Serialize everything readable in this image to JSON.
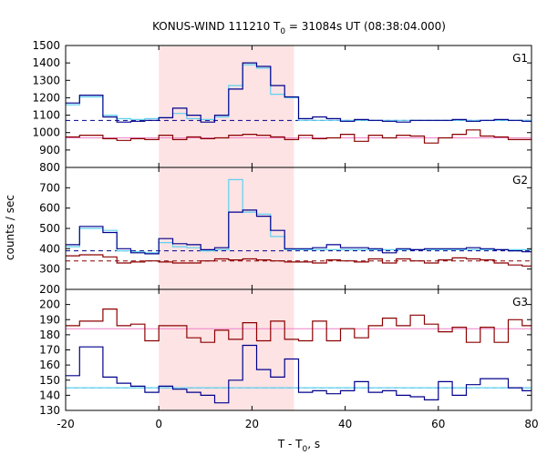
{
  "chart_data": {
    "type": "line",
    "title_prefix": "KONUS-WIND 111210 T",
    "title_sub": "0",
    "title_suffix": " = 31084s UT (08:38:04.000)",
    "xlabel_prefix": "T - T",
    "xlabel_sub": "0",
    "xlabel_suffix": ", s",
    "ylabel": "counts / sec",
    "xlim": [
      -20,
      80
    ],
    "xticks": [
      -20,
      0,
      20,
      40,
      60,
      80
    ],
    "highlight_interval": [
      0,
      29
    ],
    "colors": {
      "blue": "#00008b",
      "cyan": "#5fd0ee",
      "red": "#8b0000",
      "pink": "#ee82c8",
      "highlight": "#fde3e4"
    },
    "x_edges": [
      -20,
      -17,
      -12,
      -9,
      -6,
      -3,
      0,
      3,
      6,
      9,
      12,
      15,
      18,
      21,
      24,
      27,
      30,
      33,
      36,
      39,
      42,
      45,
      48,
      51,
      54,
      57,
      60,
      63,
      66,
      69,
      72,
      75,
      78,
      80
    ],
    "panels": [
      {
        "label": "G1",
        "ylim": [
          800,
          1500
        ],
        "yticks": [
          800,
          900,
          1000,
          1100,
          1200,
          1300,
          1400,
          1500
        ],
        "blue_values": [
          1170,
          1215,
          1090,
          1060,
          1065,
          1070,
          1085,
          1140,
          1100,
          1060,
          1100,
          1250,
          1400,
          1380,
          1270,
          1205,
          1080,
          1090,
          1080,
          1065,
          1075,
          1070,
          1065,
          1060,
          1070,
          1070,
          1070,
          1075,
          1065,
          1070,
          1075,
          1070,
          1065
        ],
        "cyan_values": [
          1160,
          1205,
          1100,
          1080,
          1075,
          1080,
          1085,
          1110,
          1080,
          1075,
          1090,
          1270,
          1390,
          1370,
          1220,
          1200,
          1070,
          1070,
          1070,
          1070,
          1070,
          1070,
          1070,
          1070,
          1070,
          1070,
          1070,
          1070,
          1070,
          1070,
          1070,
          1070,
          1070
        ],
        "red_values": [
          975,
          985,
          965,
          955,
          965,
          960,
          985,
          960,
          975,
          965,
          970,
          985,
          990,
          985,
          975,
          960,
          985,
          965,
          970,
          990,
          950,
          985,
          970,
          985,
          980,
          940,
          970,
          990,
          1015,
          980,
          975,
          960,
          960
        ],
        "blue_bg": 1070,
        "red_bg": 970,
        "red_bg_dashed": false
      },
      {
        "label": "G2",
        "ylim": [
          200,
          800
        ],
        "yticks": [
          200,
          300,
          400,
          500,
          600,
          700
        ],
        "blue_values": [
          420,
          510,
          480,
          400,
          380,
          375,
          450,
          425,
          420,
          395,
          405,
          580,
          590,
          560,
          490,
          400,
          400,
          405,
          420,
          405,
          405,
          400,
          380,
          400,
          395,
          400,
          400,
          400,
          405,
          400,
          395,
          390,
          385
        ],
        "cyan_values": [
          410,
          500,
          490,
          390,
          385,
          380,
          430,
          410,
          405,
          390,
          395,
          740,
          580,
          570,
          460,
          395,
          395,
          395,
          395,
          395,
          395,
          395,
          395,
          395,
          395,
          395,
          395,
          395,
          395,
          395,
          395,
          395,
          395
        ],
        "red_values": [
          365,
          370,
          360,
          330,
          335,
          340,
          335,
          330,
          330,
          340,
          350,
          345,
          350,
          345,
          340,
          335,
          335,
          330,
          345,
          340,
          335,
          350,
          330,
          350,
          340,
          330,
          345,
          355,
          350,
          345,
          330,
          320,
          315
        ],
        "blue_bg": 390,
        "red_bg": 340,
        "red_bg_dashed": true
      },
      {
        "label": "G3",
        "ylim": [
          130,
          210
        ],
        "yticks": [
          130,
          140,
          150,
          160,
          170,
          180,
          190,
          200
        ],
        "blue_values": [
          153,
          172,
          152,
          148,
          146,
          142,
          146,
          144,
          142,
          140,
          135,
          150,
          173,
          157,
          152,
          164,
          142,
          143,
          141,
          143,
          149,
          142,
          143,
          140,
          139,
          137,
          149,
          140,
          147,
          151,
          151,
          145,
          143
        ],
        "cyan_values": [
          145,
          145,
          145,
          145,
          145,
          145,
          145,
          145,
          145,
          145,
          145,
          145,
          145,
          145,
          145,
          145,
          145,
          145,
          145,
          145,
          145,
          145,
          145,
          145,
          145,
          145,
          145,
          145,
          145,
          145,
          145,
          145,
          145
        ],
        "red_values": [
          186,
          189,
          197,
          186,
          187,
          176,
          186,
          186,
          178,
          175,
          183,
          177,
          188,
          176,
          189,
          177,
          176,
          189,
          176,
          184,
          178,
          186,
          191,
          186,
          193,
          187,
          182,
          185,
          175,
          185,
          175,
          190,
          186
        ],
        "blue_bg": 145,
        "red_bg": 184,
        "red_bg_dashed": false
      }
    ]
  }
}
